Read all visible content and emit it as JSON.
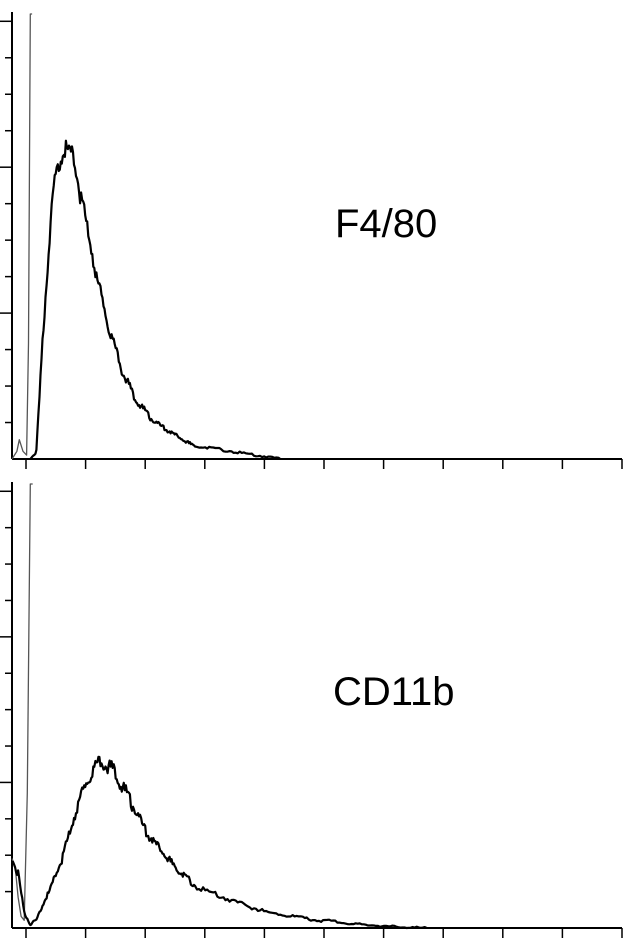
{
  "chart_data": [
    {
      "type": "line",
      "label": "F4/80",
      "title": "",
      "xlabel": "",
      "ylabel": "",
      "grid": false,
      "x_major_ticks": 11,
      "y_major_ticks": 3,
      "y_minor_per_major": 4,
      "xlim": [
        0,
        1
      ],
      "ylim": [
        0,
        1.15
      ],
      "series": [
        {
          "role": "control-isotype",
          "color": "#555555",
          "x": [
            0.0,
            0.008,
            0.012,
            0.018,
            0.024,
            0.027,
            0.03,
            0.033
          ],
          "y": [
            0.0,
            0.02,
            0.05,
            0.02,
            0.01,
            0.3,
            1.15,
            1.15
          ]
        },
        {
          "role": "stained",
          "color": "#000000",
          "x": [
            0.03,
            0.04,
            0.05,
            0.06,
            0.07,
            0.08,
            0.09,
            0.1,
            0.11,
            0.12,
            0.13,
            0.14,
            0.15,
            0.16,
            0.17,
            0.18,
            0.19,
            0.2,
            0.21,
            0.22,
            0.23,
            0.24,
            0.25,
            0.26,
            0.27,
            0.28,
            0.29,
            0.3,
            0.32,
            0.34,
            0.36,
            0.38,
            0.4,
            0.42,
            0.44
          ],
          "y": [
            0.0,
            0.02,
            0.3,
            0.55,
            0.72,
            0.78,
            0.8,
            0.78,
            0.7,
            0.62,
            0.55,
            0.46,
            0.4,
            0.33,
            0.28,
            0.23,
            0.2,
            0.16,
            0.14,
            0.12,
            0.1,
            0.09,
            0.08,
            0.07,
            0.06,
            0.05,
            0.04,
            0.035,
            0.03,
            0.025,
            0.02,
            0.015,
            0.01,
            0.005,
            0.0
          ]
        }
      ]
    },
    {
      "type": "line",
      "label": "CD11b",
      "title": "",
      "xlabel": "",
      "ylabel": "",
      "grid": false,
      "x_major_ticks": 11,
      "y_major_ticks": 3,
      "y_minor_per_major": 4,
      "xlim": [
        0,
        1
      ],
      "ylim": [
        0,
        1.15
      ],
      "series": [
        {
          "role": "control-isotype",
          "color": "#555555",
          "x": [
            0.0,
            0.005,
            0.01,
            0.015,
            0.02,
            0.025,
            0.03,
            0.034
          ],
          "y": [
            0.18,
            0.16,
            0.08,
            0.03,
            0.02,
            0.35,
            1.15,
            1.15
          ]
        },
        {
          "role": "stained",
          "color": "#000000",
          "x": [
            0.0,
            0.01,
            0.02,
            0.03,
            0.04,
            0.05,
            0.06,
            0.07,
            0.08,
            0.09,
            0.1,
            0.11,
            0.12,
            0.13,
            0.14,
            0.15,
            0.16,
            0.17,
            0.18,
            0.19,
            0.2,
            0.21,
            0.22,
            0.23,
            0.24,
            0.25,
            0.26,
            0.27,
            0.28,
            0.29,
            0.3,
            0.32,
            0.34,
            0.36,
            0.38,
            0.4,
            0.42,
            0.44,
            0.46,
            0.48,
            0.5,
            0.52,
            0.54,
            0.56,
            0.58,
            0.6,
            0.62,
            0.64,
            0.66,
            0.68
          ],
          "y": [
            0.18,
            0.14,
            0.04,
            0.01,
            0.02,
            0.06,
            0.09,
            0.13,
            0.17,
            0.22,
            0.28,
            0.33,
            0.37,
            0.4,
            0.42,
            0.43,
            0.42,
            0.4,
            0.37,
            0.34,
            0.31,
            0.28,
            0.25,
            0.23,
            0.21,
            0.19,
            0.17,
            0.155,
            0.14,
            0.125,
            0.11,
            0.095,
            0.085,
            0.07,
            0.06,
            0.05,
            0.04,
            0.035,
            0.03,
            0.025,
            0.02,
            0.018,
            0.014,
            0.01,
            0.008,
            0.006,
            0.004,
            0.002,
            0.001,
            0.0
          ]
        }
      ]
    }
  ]
}
